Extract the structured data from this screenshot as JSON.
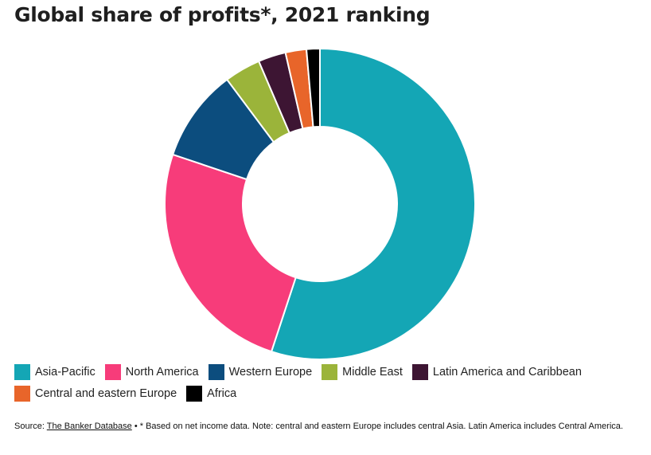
{
  "chart_data": {
    "type": "pie",
    "title": "Global share of profits*, 2021 ranking",
    "categories": [
      "Asia-Pacific",
      "North America",
      "Western Europe",
      "Middle East",
      "Latin America and Caribbean",
      "Central and eastern Europe",
      "Africa"
    ],
    "values": [
      55.5,
      25.3,
      9.7,
      3.8,
      2.9,
      2.2,
      1.4
    ],
    "colors": [
      "#14a6b5",
      "#f73c7a",
      "#0c4d7e",
      "#9bb43a",
      "#3d1533",
      "#e8652a",
      "#000000"
    ],
    "legend_position": "bottom",
    "style": "donut"
  },
  "footer": {
    "source_prefix": "Source: ",
    "source_link": "The Banker Database",
    "note": " • * Based on net income data. Note: central and eastern Europe includes central Asia. Latin America includes Central America."
  }
}
